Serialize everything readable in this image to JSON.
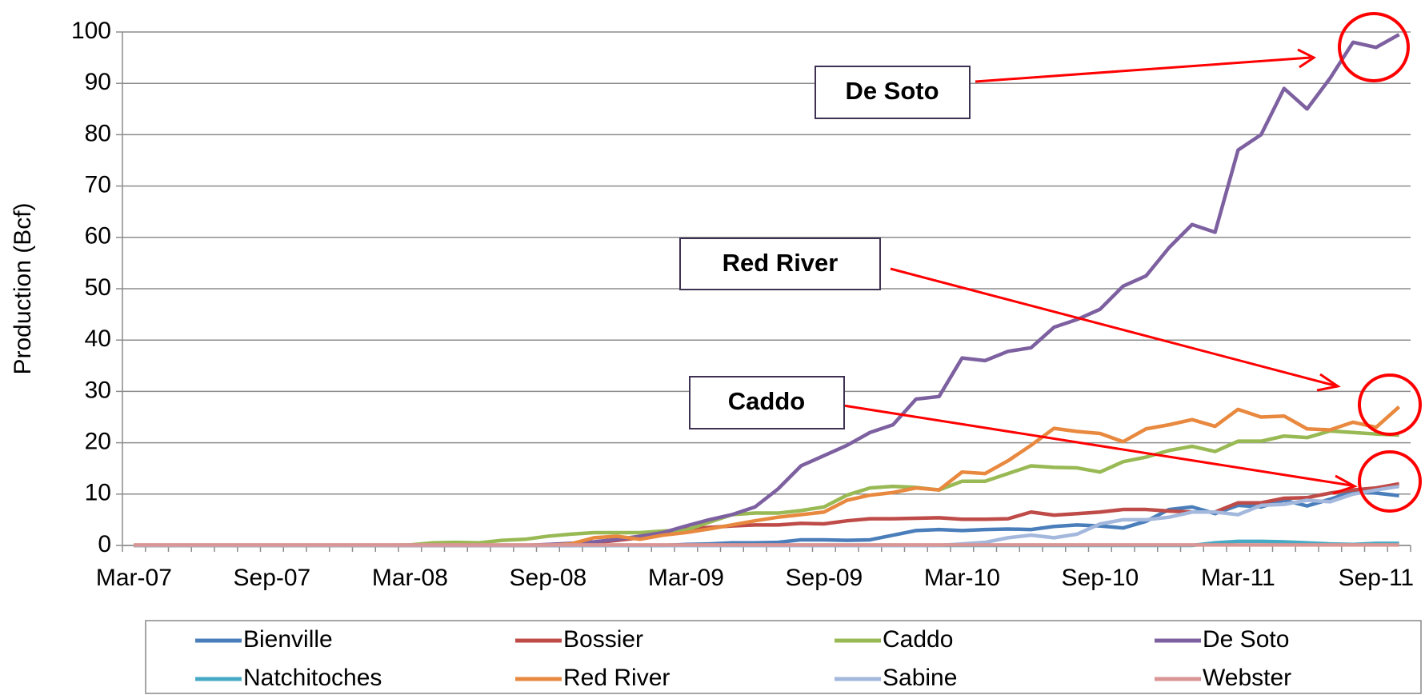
{
  "chart_data": {
    "type": "line",
    "y_label": "Production (Bcf)",
    "categories": [
      "Mar-07",
      null,
      null,
      null,
      null,
      null,
      "Sep-07",
      null,
      null,
      null,
      null,
      null,
      "Mar-08",
      null,
      null,
      null,
      null,
      null,
      "Sep-08",
      null,
      null,
      null,
      null,
      null,
      "Mar-09",
      null,
      null,
      null,
      null,
      null,
      "Sep-09",
      null,
      null,
      null,
      null,
      null,
      "Mar-10",
      null,
      null,
      null,
      null,
      null,
      "Sep-10",
      null,
      null,
      null,
      null,
      null,
      "Mar-11",
      null,
      null,
      null,
      null,
      null,
      "Sep-11",
      null
    ],
    "ylim": [
      0,
      100
    ],
    "yticks": [
      0,
      10,
      20,
      30,
      40,
      50,
      60,
      70,
      80,
      90,
      100
    ],
    "grid": true,
    "series": [
      {
        "name": "Bienville",
        "color": "#4a7ebb",
        "values": [
          0,
          0,
          0,
          0,
          0,
          0,
          0,
          0,
          0,
          0,
          0,
          0,
          0,
          0,
          0,
          0,
          0,
          0,
          0,
          0,
          0,
          0,
          0,
          0,
          0.2,
          0.3,
          0.5,
          0.5,
          0.6,
          1.1,
          1.1,
          1,
          1.1,
          2,
          2.9,
          3.1,
          2.9,
          3.1,
          3.2,
          3.1,
          3.7,
          4,
          3.8,
          3.4,
          4.7,
          7,
          7.5,
          6.2,
          7.8,
          7.5,
          8.8,
          7.7,
          9,
          10.5,
          10.2,
          9.7
        ]
      },
      {
        "name": "Bossier",
        "color": "#be4b48",
        "values": [
          0,
          0,
          0,
          0,
          0,
          0,
          0,
          0,
          0,
          0,
          0,
          0,
          0,
          0,
          0,
          0,
          0,
          0,
          0,
          0,
          0.5,
          1,
          1.5,
          2.5,
          3.2,
          3.5,
          3.8,
          4,
          4,
          4.3,
          4.2,
          4.8,
          5.2,
          5.2,
          5.3,
          5.4,
          5.1,
          5.1,
          5.2,
          6.5,
          5.9,
          6.2,
          6.5,
          7,
          7,
          6.7,
          6.5,
          6.5,
          8.3,
          8.3,
          9.2,
          9.3,
          10.2,
          10.8,
          11.2,
          12
        ]
      },
      {
        "name": "Caddo",
        "color": "#98b954",
        "values": [
          0,
          0,
          0,
          0,
          0,
          0,
          0,
          0,
          0,
          0,
          0,
          0,
          0.1,
          0.5,
          0.6,
          0.5,
          1,
          1.2,
          1.8,
          2.2,
          2.5,
          2.5,
          2.5,
          2.8,
          3,
          4.5,
          6,
          6.3,
          6.3,
          6.8,
          7.5,
          9.8,
          11.2,
          11.5,
          11.3,
          10.8,
          12.5,
          12.5,
          14,
          15.5,
          15.2,
          15.1,
          14.3,
          16.3,
          17.2,
          18.5,
          19.3,
          18.3,
          20.3,
          20.3,
          21.3,
          21,
          22.3,
          22,
          21.7,
          21.5
        ]
      },
      {
        "name": "De Soto",
        "color": "#7d60a0",
        "values": [
          0,
          0,
          0,
          0,
          0,
          0,
          0,
          0,
          0,
          0,
          0,
          0,
          0,
          0,
          0,
          0,
          0,
          0,
          0.2,
          0.4,
          0.7,
          1.2,
          1.8,
          2.5,
          3.8,
          5,
          6,
          7.5,
          11,
          15.5,
          17.5,
          19.5,
          22,
          23.5,
          28.5,
          29,
          36.5,
          36,
          37.8,
          38.5,
          42.5,
          44,
          46,
          50.5,
          52.5,
          58,
          62.5,
          61,
          77,
          80,
          89,
          85,
          91,
          98,
          97,
          99.5
        ]
      },
      {
        "name": "Natchitoches",
        "color": "#46aac5",
        "values": [
          0,
          0,
          0,
          0,
          0,
          0,
          0,
          0,
          0,
          0,
          0,
          0,
          0,
          0,
          0,
          0,
          0,
          0,
          0,
          0,
          0,
          0,
          0,
          0,
          0,
          0,
          0,
          0,
          0,
          0,
          0,
          0,
          0,
          0,
          0,
          0,
          0,
          0,
          0,
          0,
          0,
          0,
          0,
          0,
          0,
          0,
          0,
          0.5,
          0.8,
          0.8,
          0.7,
          0.5,
          0.3,
          0.2,
          0.4,
          0.4
        ]
      },
      {
        "name": "Red River",
        "color": "#e8893f",
        "values": [
          0,
          0,
          0,
          0,
          0,
          0,
          0,
          0,
          0,
          0,
          0,
          0,
          0,
          0,
          0,
          0,
          0,
          0,
          0,
          0.3,
          1.5,
          1.8,
          1.2,
          2,
          2.5,
          3.2,
          4,
          4.8,
          5.5,
          6,
          6.5,
          8.8,
          9.8,
          10.3,
          11.2,
          10.8,
          14.3,
          14,
          16.5,
          19.5,
          22.8,
          22.2,
          21.8,
          20.2,
          22.7,
          23.5,
          24.5,
          23.2,
          26.5,
          25,
          25.2,
          22.7,
          22.5,
          24,
          23,
          27
        ]
      },
      {
        "name": "Sabine",
        "color": "#a3b8dc",
        "values": [
          0,
          0,
          0,
          0,
          0,
          0,
          0,
          0,
          0,
          0,
          0,
          0,
          0,
          0,
          0,
          0,
          0,
          0,
          0,
          0,
          0,
          0,
          0,
          0,
          0,
          0,
          0,
          0,
          0,
          0,
          0,
          0,
          0,
          0,
          0,
          0,
          0.3,
          0.6,
          1.5,
          2,
          1.5,
          2.2,
          4.2,
          5,
          5,
          5.5,
          6.5,
          6.5,
          6,
          7.8,
          8,
          8.8,
          8.5,
          10,
          10.8,
          11.5
        ]
      },
      {
        "name": "Webster",
        "color": "#d99694",
        "values": [
          0.1,
          0.1,
          0.1,
          0.1,
          0.1,
          0.1,
          0.1,
          0.1,
          0.1,
          0.1,
          0.1,
          0.1,
          0.1,
          0.1,
          0.1,
          0.1,
          0.1,
          0.1,
          0.1,
          0.1,
          0.1,
          0.1,
          0.1,
          0.1,
          0.1,
          0.1,
          0.1,
          0.1,
          0.1,
          0.1,
          0.1,
          0.1,
          0.1,
          0.1,
          0.1,
          0.1,
          0.1,
          0.1,
          0.1,
          0.1,
          0.1,
          0.1,
          0.1,
          0.1,
          0.1,
          0.1,
          0.1,
          0.1,
          0.1,
          0.1,
          0.1,
          0.1,
          0.1,
          0.1,
          0.1,
          0.1
        ]
      }
    ],
    "annotations": [
      "De Soto",
      "Red River",
      "Caddo"
    ]
  }
}
